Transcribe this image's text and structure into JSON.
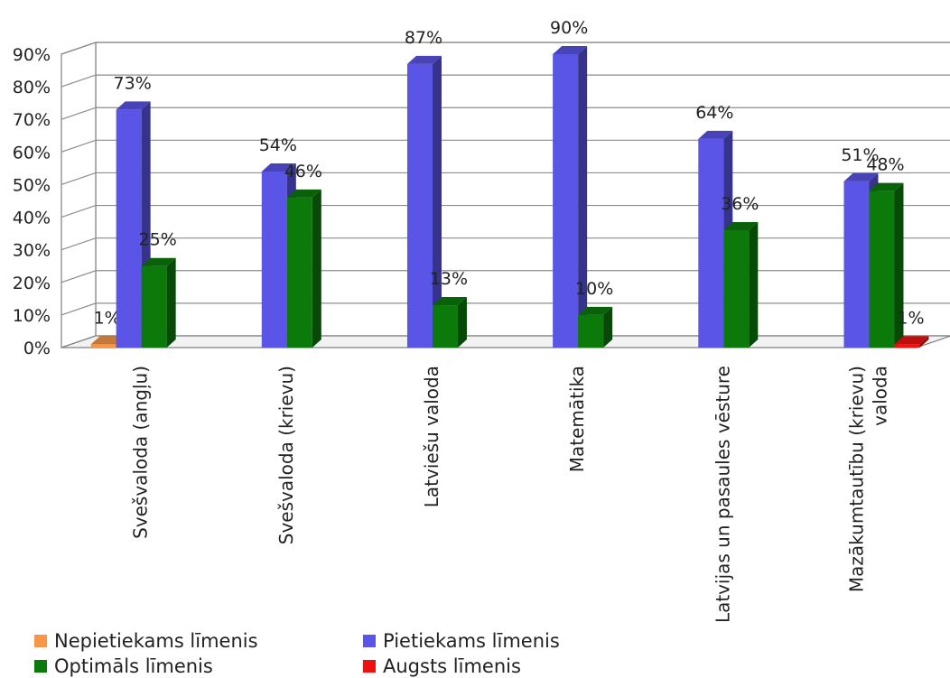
{
  "chart_data": {
    "type": "bar",
    "title": "",
    "xlabel": "",
    "ylabel": "",
    "ylim": [
      0,
      90
    ],
    "y_ticks": [
      "0%",
      "10%",
      "20%",
      "30%",
      "40%",
      "50%",
      "60%",
      "70%",
      "80%",
      "90%"
    ],
    "grid": true,
    "legend_position": "bottom",
    "categories": [
      "Svešvaloda (angļu)",
      "Svešvaloda (krievu)",
      "Latviešu valoda",
      "Matemātika",
      "Latvijas un pasaules vēsture",
      "Mazākumtautību (krievu) valoda"
    ],
    "category_label_lines": [
      [
        "Svešvaloda (angļu)"
      ],
      [
        "Svešvaloda (krievu)"
      ],
      [
        "Latviešu valoda"
      ],
      [
        "Matemātika"
      ],
      [
        "Latvijas un pasaules vēsture"
      ],
      [
        "Mazākumtautību (krievu)",
        "valoda"
      ]
    ],
    "series": [
      {
        "name": "Nepietiekams līmenis",
        "color": "#f79646",
        "values": [
          1,
          0,
          0,
          0,
          0,
          0
        ],
        "labels": [
          "1%",
          "",
          "",
          "",
          "",
          ""
        ]
      },
      {
        "name": "Pietiekams līmenis",
        "color": "#5a55e6",
        "values": [
          73,
          54,
          87,
          90,
          64,
          51
        ],
        "labels": [
          "73%",
          "54%",
          "87%",
          "90%",
          "64%",
          "51%"
        ]
      },
      {
        "name": "Optimāls līmenis",
        "color": "#0b7a0b",
        "values": [
          25,
          46,
          13,
          10,
          36,
          48
        ],
        "labels": [
          "25%",
          "46%",
          "13%",
          "10%",
          "36%",
          "48%"
        ]
      },
      {
        "name": "Augsts līmenis",
        "color": "#ee1111",
        "values": [
          0,
          0,
          0,
          0,
          0,
          1
        ],
        "labels": [
          "",
          "",
          "",
          "",
          "",
          "1%"
        ]
      }
    ],
    "legend": [
      {
        "label": "Nepietiekams līmenis",
        "color": "#f79646"
      },
      {
        "label": "Pietiekams līmenis",
        "color": "#5a55e6"
      },
      {
        "label": "Optimāls līmenis",
        "color": "#0b7a0b"
      },
      {
        "label": "Augsts līmenis",
        "color": "#ee1111"
      }
    ]
  }
}
